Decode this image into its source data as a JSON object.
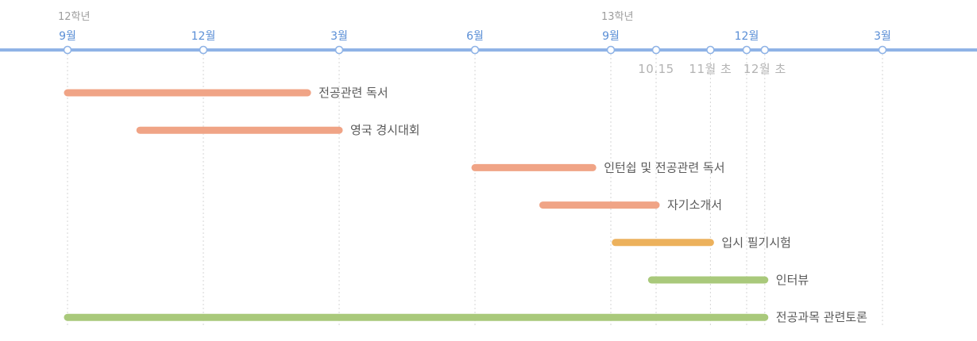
{
  "colors": {
    "axis": "#8fb3e6",
    "month_text": "#5b8fd6",
    "dot_fill": "#ffffff",
    "gridline": "#d6d6d6",
    "prep": "#f0a486",
    "exam": "#ecb15c",
    "interview": "#a9c97b"
  },
  "years": [
    {
      "label": "12학년",
      "x": 0
    },
    {
      "label": "13학년",
      "x": 12
    }
  ],
  "month_ticks": [
    {
      "label": "9월",
      "x": 0
    },
    {
      "label": "12월",
      "x": 3
    },
    {
      "label": "3월",
      "x": 6
    },
    {
      "label": "6월",
      "x": 9
    },
    {
      "label": "9월",
      "x": 12
    },
    {
      "label": "12월",
      "x": 15
    },
    {
      "label": "3월",
      "x": 18
    }
  ],
  "marks": [
    {
      "label": "10.15",
      "x": 13.0
    },
    {
      "label": "11월 초",
      "x": 14.2
    },
    {
      "label": "12월 초",
      "x": 15.4
    }
  ],
  "tasks": [
    {
      "label": "전공관련 독서",
      "start": 0,
      "end": 5.3,
      "color": "prep"
    },
    {
      "label": "영국 경시대회",
      "start": 1.6,
      "end": 6.0,
      "color": "prep"
    },
    {
      "label": "인턴쉽 및 전공관련 독서",
      "start": 9.0,
      "end": 11.6,
      "color": "prep"
    },
    {
      "label": "자기소개서",
      "start": 10.5,
      "end": 13.0,
      "color": "prep"
    },
    {
      "label": "입시 필기시험",
      "start": 12.1,
      "end": 14.2,
      "color": "exam"
    },
    {
      "label": "인터뷰",
      "start": 12.9,
      "end": 15.4,
      "color": "interview"
    },
    {
      "label": "전공과목 관련토론",
      "start": 0,
      "end": 15.4,
      "color": "interview"
    }
  ]
}
